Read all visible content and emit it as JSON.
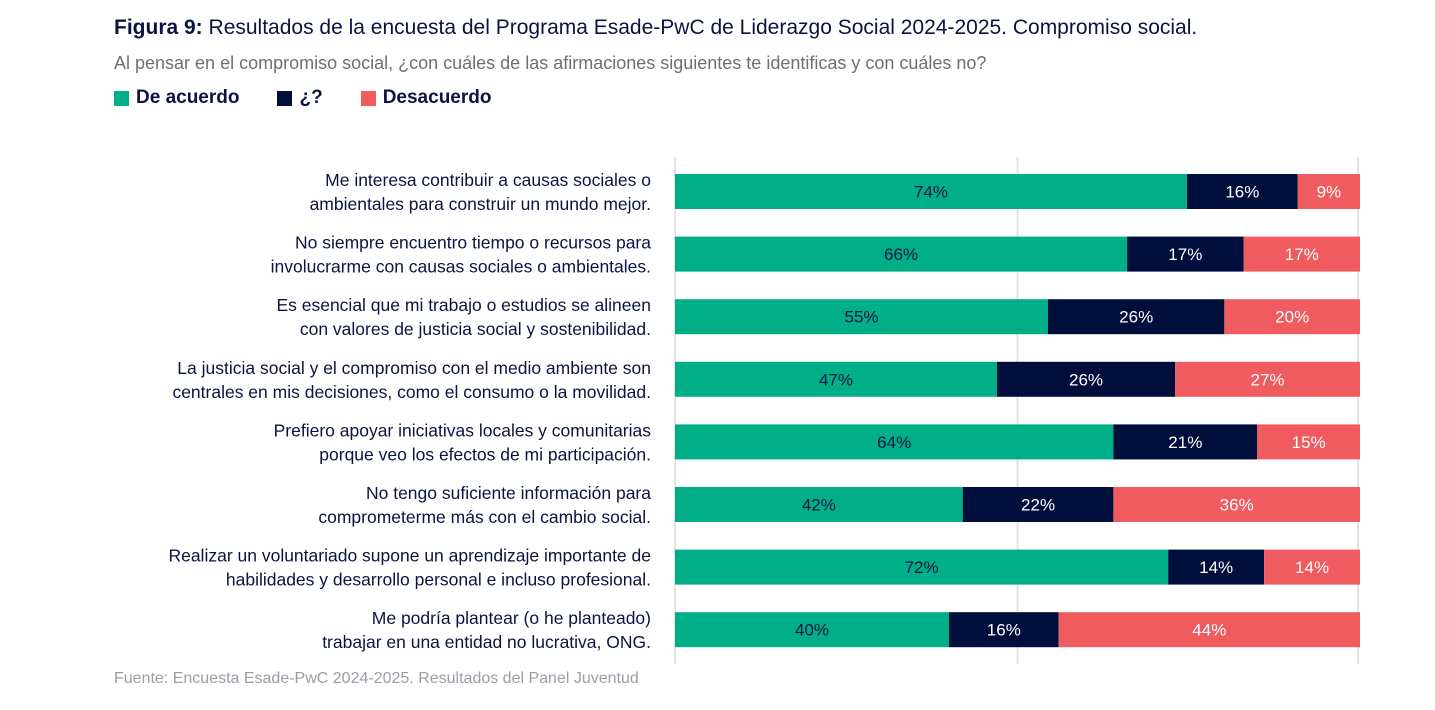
{
  "title_prefix": "Figura 9:",
  "title": " Resultados de la encuesta del Programa Esade-PwC de Liderazgo Social 2024-2025. Compromiso social.",
  "subtitle": "Al pensar en el compromiso social, ¿con cuáles de las afirmaciones siguientes te identificas y con cuáles no?",
  "source": "Fuente: Encuesta Esade-PwC 2024-2025. Resultados del Panel Juventud",
  "chart_data": {
    "type": "bar",
    "orientation": "horizontal",
    "stacked": true,
    "grid": true,
    "legend_position": "top-left",
    "categories": [
      [
        "Me interesa contribuir a causas sociales o",
        "ambientales para construir un mundo mejor."
      ],
      [
        "No siempre encuentro tiempo o recursos para",
        "involucrarme con causas sociales o ambientales."
      ],
      [
        "Es esencial que mi trabajo o estudios se alineen",
        "con valores de justicia social y sostenibilidad."
      ],
      [
        "La justicia social y el compromiso con el medio ambiente son",
        "centrales en mis decisiones, como el consumo o la movilidad."
      ],
      [
        "Prefiero apoyar iniciativas locales y comunitarias",
        "porque veo los efectos de mi participación."
      ],
      [
        "No tengo suficiente información para",
        "comprometerme más con el cambio social."
      ],
      [
        "Realizar un voluntariado supone un aprendizaje importante de",
        "habilidades y desarrollo personal e incluso profesional."
      ],
      [
        "Me podría plantear (o he planteado)",
        "trabajar en una entidad no lucrativa, ONG."
      ]
    ],
    "series": [
      {
        "name": "De acuerdo",
        "color": "#00AE88",
        "label_color": "#0b1440",
        "values": [
          74,
          66,
          55,
          47,
          64,
          42,
          72,
          40
        ]
      },
      {
        "name": "¿?",
        "color": "#000E3C",
        "label_color": "#ffffff",
        "values": [
          16,
          17,
          26,
          26,
          21,
          22,
          14,
          16
        ]
      },
      {
        "name": "Desacuerdo",
        "color": "#EF5B5F",
        "label_color": "#ffffff",
        "values": [
          9,
          17,
          20,
          27,
          15,
          36,
          14,
          44
        ]
      }
    ],
    "unit": "%"
  }
}
